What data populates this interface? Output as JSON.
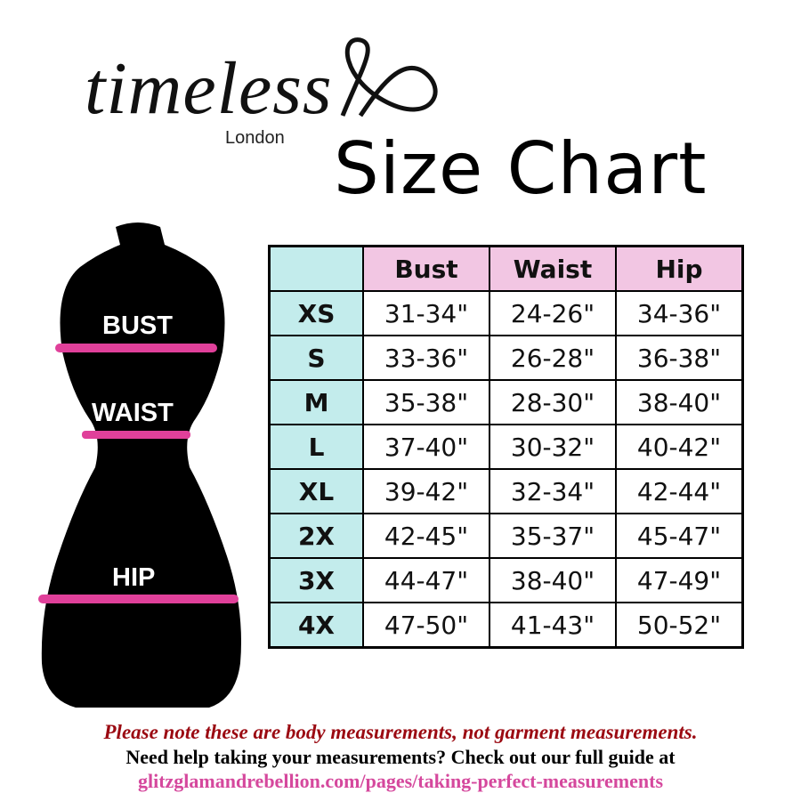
{
  "brand": {
    "name": "timeless",
    "sub": "London"
  },
  "title": "Size Chart",
  "form_labels": {
    "bust": "BUST",
    "waist": "WAIST",
    "hip": "HIP"
  },
  "colors": {
    "accent_pink": "#e0409a",
    "header_pink": "#f2c6e3",
    "size_cyan": "#c3ecec",
    "note_red": "#9b0a12",
    "link_pink": "#d5489d"
  },
  "table": {
    "headers": [
      "Bust",
      "Waist",
      "Hip"
    ],
    "rows": [
      {
        "size": "XS",
        "values": [
          "31-34\"",
          "24-26\"",
          "34-36\""
        ]
      },
      {
        "size": "S",
        "values": [
          "33-36\"",
          "26-28\"",
          "36-38\""
        ]
      },
      {
        "size": "M",
        "values": [
          "35-38\"",
          "28-30\"",
          "38-40\""
        ]
      },
      {
        "size": "L",
        "values": [
          "37-40\"",
          "30-32\"",
          "40-42\""
        ]
      },
      {
        "size": "XL",
        "values": [
          "39-42\"",
          "32-34\"",
          "42-44\""
        ]
      },
      {
        "size": "2X",
        "values": [
          "42-45\"",
          "35-37\"",
          "45-47\""
        ]
      },
      {
        "size": "3X",
        "values": [
          "44-47\"",
          "38-40\"",
          "47-49\""
        ]
      },
      {
        "size": "4X",
        "values": [
          "47-50\"",
          "41-43\"",
          "50-52\""
        ]
      }
    ]
  },
  "notes": {
    "disclaimer": "Please note these are body measurements, not garment measurements.",
    "help": "Need help taking your measurements? Check out our full guide at",
    "link": "glitzglamandrebellion.com/pages/taking-perfect-measurements"
  }
}
